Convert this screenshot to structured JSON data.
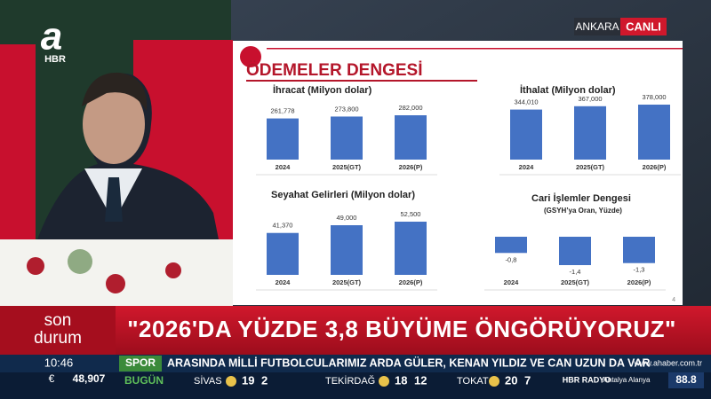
{
  "channel": {
    "logo": "a",
    "sub": "HBR",
    "city": "ANKARA",
    "live": "CANLI"
  },
  "slide": {
    "title": "ÖDEMELER DENGESİ",
    "page": "4"
  },
  "chart_data": [
    {
      "type": "bar",
      "title": "İhracat (Milyon dolar)",
      "categories": [
        "2024",
        "2025(GT)",
        "2026(P)"
      ],
      "values": [
        261778,
        273800,
        282000
      ],
      "value_labels": [
        "261,778",
        "273,800",
        "282,000"
      ],
      "color": "#4472c4"
    },
    {
      "type": "bar",
      "title": "İthalat (Milyon dolar)",
      "categories": [
        "2024",
        "2025(GT)",
        "2026(P)"
      ],
      "values": [
        344010,
        367000,
        378000
      ],
      "value_labels": [
        "344,010",
        "367,000",
        "378,000"
      ],
      "color": "#4472c4"
    },
    {
      "type": "bar",
      "title": "Seyahat Gelirleri (Milyon dolar)",
      "categories": [
        "2024",
        "2025(GT)",
        "2026(P)"
      ],
      "values": [
        41370,
        49000,
        52500
      ],
      "value_labels": [
        "41,370",
        "49,000",
        "52,500"
      ],
      "color": "#4472c4"
    },
    {
      "type": "bar",
      "title": "Cari İşlemler Dengesi",
      "subtitle": "(GSYH’ya Oran, Yüzde)",
      "categories": [
        "2024",
        "2025(GT)",
        "2026(P)"
      ],
      "values": [
        -0.8,
        -1.4,
        -1.3
      ],
      "value_labels": [
        "-0,8",
        "-1,4",
        "-1,3"
      ],
      "color": "#4472c4"
    }
  ],
  "lower_third": {
    "tag_top": "son",
    "tag_bottom": "durum",
    "headline": "\"2026'DA YÜZDE 3,8 BÜYÜME ÖNGÖRÜYORUZ\""
  },
  "ticker": {
    "time": "10:46",
    "section": "SPOR",
    "text": "ARASINDA MİLLİ FUTBOLCULARIMIZ ARDA GÜLER, KENAN YILDIZ VE CAN UZUN DA VAR",
    "site": "www.ahaber.com.tr"
  },
  "bottom_bar": {
    "currency": "€",
    "rate": "48,907",
    "day": "BUGÜN",
    "weather": [
      {
        "city": "SİVAS",
        "high": 19,
        "low": 2
      },
      {
        "city": "TEKİRDAĞ",
        "high": 18,
        "low": 12
      },
      {
        "city": "TOKAT",
        "high": 20,
        "low": 7
      }
    ],
    "radio": "HBR RADYO",
    "radio_city": "Antalya Alanya",
    "frequency": "88.8"
  }
}
